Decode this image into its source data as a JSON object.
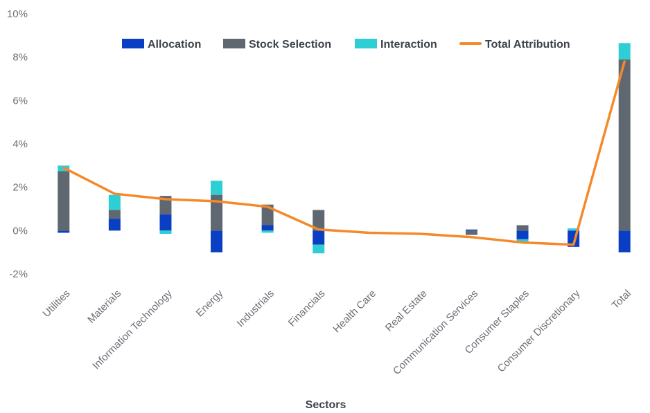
{
  "chart_data": {
    "type": "bar",
    "stacked": true,
    "xlabel": "Sectors",
    "ylabel": "",
    "ylim": [
      -2,
      10
    ],
    "yticks": [
      -2,
      0,
      2,
      4,
      6,
      8,
      10
    ],
    "ytick_labels": [
      "-2%",
      "0%",
      "2%",
      "4%",
      "6%",
      "8%",
      "10%"
    ],
    "grid": false,
    "legend_position": "top",
    "categories": [
      "Utilities",
      "Materials",
      "Information Technology",
      "Energy",
      "Industrials",
      "Financials",
      "Health Care",
      "Real Estate",
      "Communication Services",
      "Consumer Staples",
      "Consumer Discretionary",
      "Total"
    ],
    "series": [
      {
        "name": "Allocation",
        "kind": "bar",
        "color": "#0a3fc4",
        "values": [
          -0.1,
          0.55,
          0.75,
          -1.0,
          0.25,
          -0.65,
          0.0,
          0.0,
          0.05,
          -0.4,
          -0.75,
          -1.0
        ]
      },
      {
        "name": "Stock Selection",
        "kind": "bar",
        "color": "#5f6870",
        "values": [
          2.75,
          0.4,
          0.85,
          1.65,
          0.95,
          0.95,
          0.0,
          0.0,
          -0.2,
          0.25,
          0.0,
          7.9
        ]
      },
      {
        "name": "Interaction",
        "kind": "bar",
        "color": "#2ecfd4",
        "values": [
          0.25,
          0.7,
          -0.15,
          0.65,
          -0.1,
          -0.4,
          0.0,
          0.0,
          0.0,
          -0.15,
          0.1,
          0.75
        ]
      },
      {
        "name": "Total Attribution",
        "kind": "line",
        "color": "#f5892a",
        "values": [
          2.9,
          1.7,
          1.45,
          1.35,
          1.1,
          0.05,
          -0.1,
          -0.15,
          -0.3,
          -0.55,
          -0.65,
          7.8
        ]
      }
    ]
  }
}
